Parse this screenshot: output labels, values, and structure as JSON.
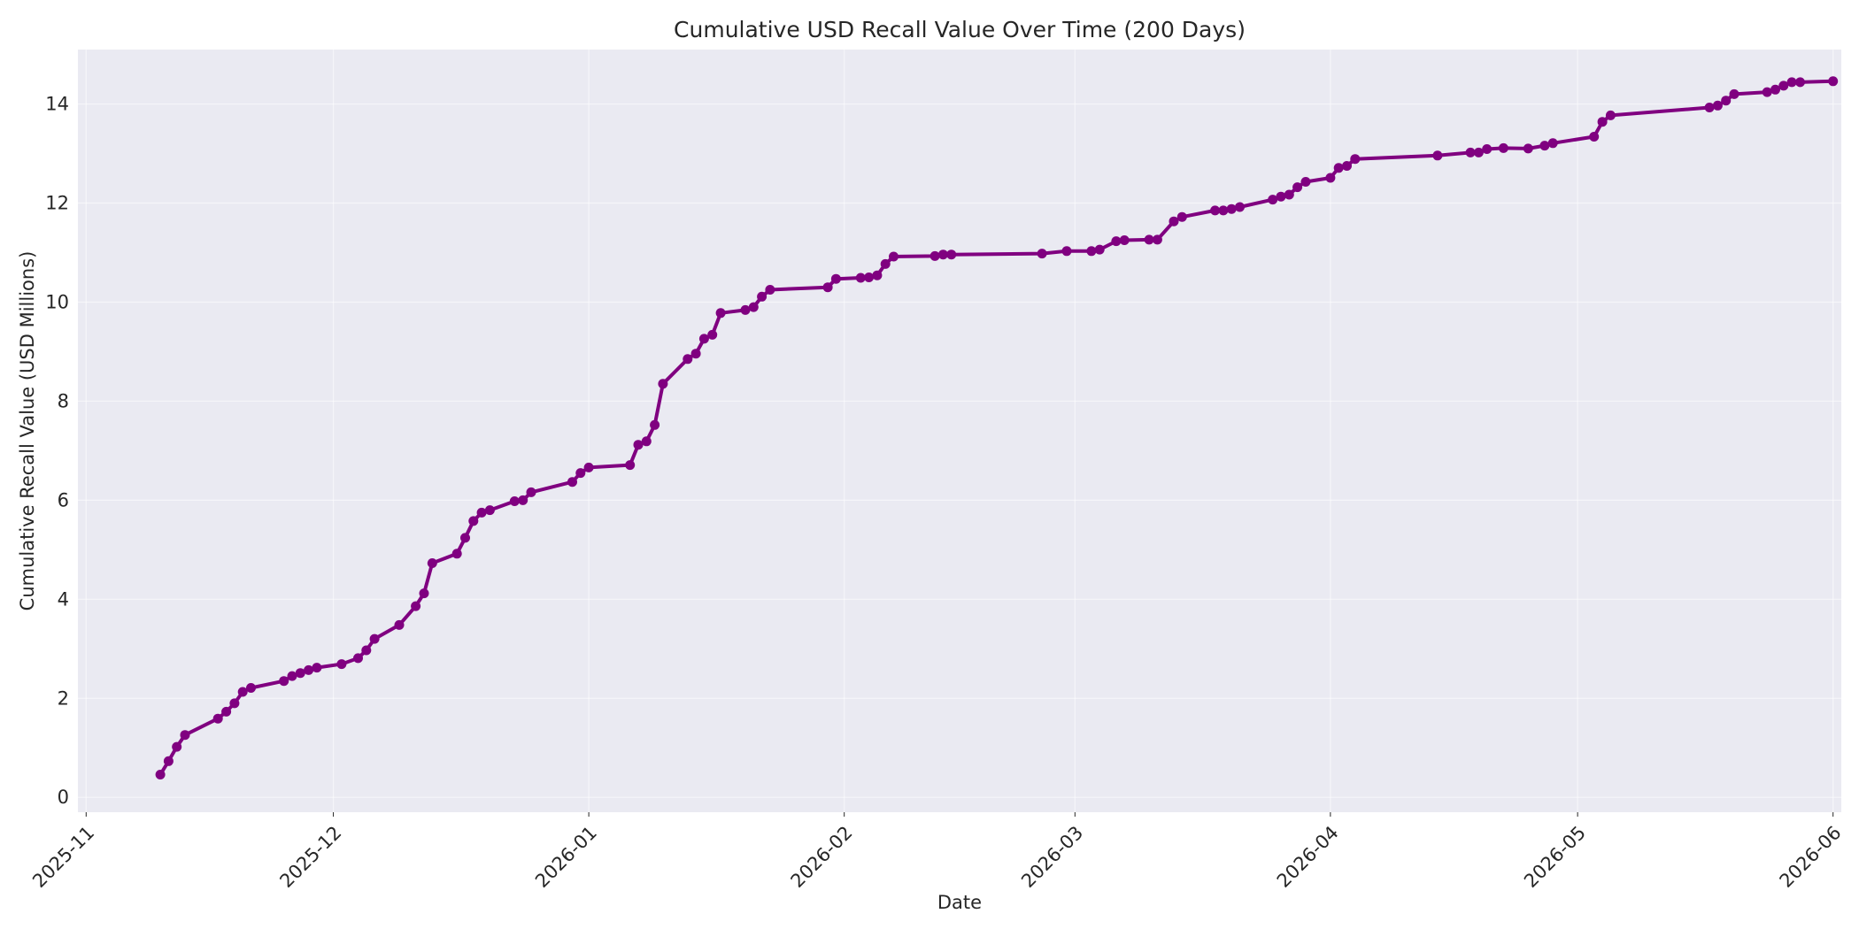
{
  "chart_data": {
    "type": "line",
    "title": "Cumulative USD Recall Value Over Time (200 Days)",
    "xlabel": "Date",
    "ylabel": "Cumulative Recall Value (USD Millions)",
    "xlim": [
      "2025-10-31",
      "2026-06-02"
    ],
    "ylim": [
      -0.3,
      15.1
    ],
    "grid": true,
    "x_ticks": [
      "2025-11",
      "2025-12",
      "2026-01",
      "2026-02",
      "2026-03",
      "2026-04",
      "2026-05",
      "2026-06"
    ],
    "y_ticks": [
      0,
      2,
      4,
      6,
      8,
      10,
      12,
      14
    ],
    "colors": {
      "series": "#800080"
    },
    "series": [
      {
        "x": [
          "2025-11-10",
          "2025-11-11",
          "2025-11-12",
          "2025-11-13",
          "2025-11-17",
          "2025-11-18",
          "2025-11-19",
          "2025-11-20",
          "2025-11-21",
          "2025-11-25",
          "2025-11-26",
          "2025-11-27",
          "2025-11-28",
          "2025-11-29",
          "2025-12-02",
          "2025-12-04",
          "2025-12-05",
          "2025-12-06",
          "2025-12-09",
          "2025-12-11",
          "2025-12-12",
          "2025-12-13",
          "2025-12-16",
          "2025-12-17",
          "2025-12-18",
          "2025-12-19",
          "2025-12-20",
          "2025-12-23",
          "2025-12-24",
          "2025-12-25",
          "2025-12-30",
          "2025-12-31",
          "2026-01-01",
          "2026-01-06",
          "2026-01-07",
          "2026-01-08",
          "2026-01-09",
          "2026-01-10",
          "2026-01-13",
          "2026-01-14",
          "2026-01-15",
          "2026-01-16",
          "2026-01-17",
          "2026-01-20",
          "2026-01-21",
          "2026-01-22",
          "2026-01-23",
          "2026-01-30",
          "2026-01-31",
          "2026-02-03",
          "2026-02-04",
          "2026-02-05",
          "2026-02-06",
          "2026-02-07",
          "2026-02-12",
          "2026-02-13",
          "2026-02-14",
          "2026-02-25",
          "2026-02-28",
          "2026-03-03",
          "2026-03-04",
          "2026-03-06",
          "2026-03-07",
          "2026-03-10",
          "2026-03-11",
          "2026-03-13",
          "2026-03-14",
          "2026-03-18",
          "2026-03-19",
          "2026-03-20",
          "2026-03-21",
          "2026-03-25",
          "2026-03-26",
          "2026-03-27",
          "2026-03-28",
          "2026-03-29",
          "2026-04-01",
          "2026-04-02",
          "2026-04-03",
          "2026-04-04",
          "2026-04-14",
          "2026-04-18",
          "2026-04-19",
          "2026-04-20",
          "2026-04-22",
          "2026-04-25",
          "2026-04-27",
          "2026-04-28",
          "2026-05-03",
          "2026-05-04",
          "2026-05-05",
          "2026-05-17",
          "2026-05-18",
          "2026-05-19",
          "2026-05-20",
          "2026-05-24",
          "2026-05-25",
          "2026-05-26",
          "2026-05-27",
          "2026-05-28",
          "2026-06-01"
        ],
        "y": [
          0.46,
          0.73,
          1.02,
          1.26,
          1.59,
          1.73,
          1.9,
          2.13,
          2.21,
          2.35,
          2.45,
          2.51,
          2.57,
          2.62,
          2.69,
          2.81,
          2.97,
          3.2,
          3.48,
          3.86,
          4.12,
          4.73,
          4.92,
          5.24,
          5.58,
          5.75,
          5.8,
          5.98,
          6.0,
          6.16,
          6.37,
          6.55,
          6.66,
          6.71,
          7.12,
          7.19,
          7.52,
          8.35,
          8.85,
          8.96,
          9.26,
          9.34,
          9.78,
          9.84,
          9.9,
          10.11,
          10.25,
          10.3,
          10.47,
          10.49,
          10.5,
          10.54,
          10.77,
          10.92,
          10.93,
          10.96,
          10.96,
          10.98,
          11.03,
          11.03,
          11.06,
          11.23,
          11.25,
          11.26,
          11.26,
          11.63,
          11.72,
          11.85,
          11.85,
          11.88,
          11.92,
          12.07,
          12.13,
          12.17,
          12.32,
          12.43,
          12.51,
          12.71,
          12.75,
          12.89,
          12.96,
          13.02,
          13.02,
          13.09,
          13.11,
          13.1,
          13.16,
          13.21,
          13.34,
          13.64,
          13.77,
          13.93,
          13.97,
          14.07,
          14.2,
          14.24,
          14.29,
          14.37,
          14.44,
          14.44,
          14.46
        ]
      }
    ]
  }
}
